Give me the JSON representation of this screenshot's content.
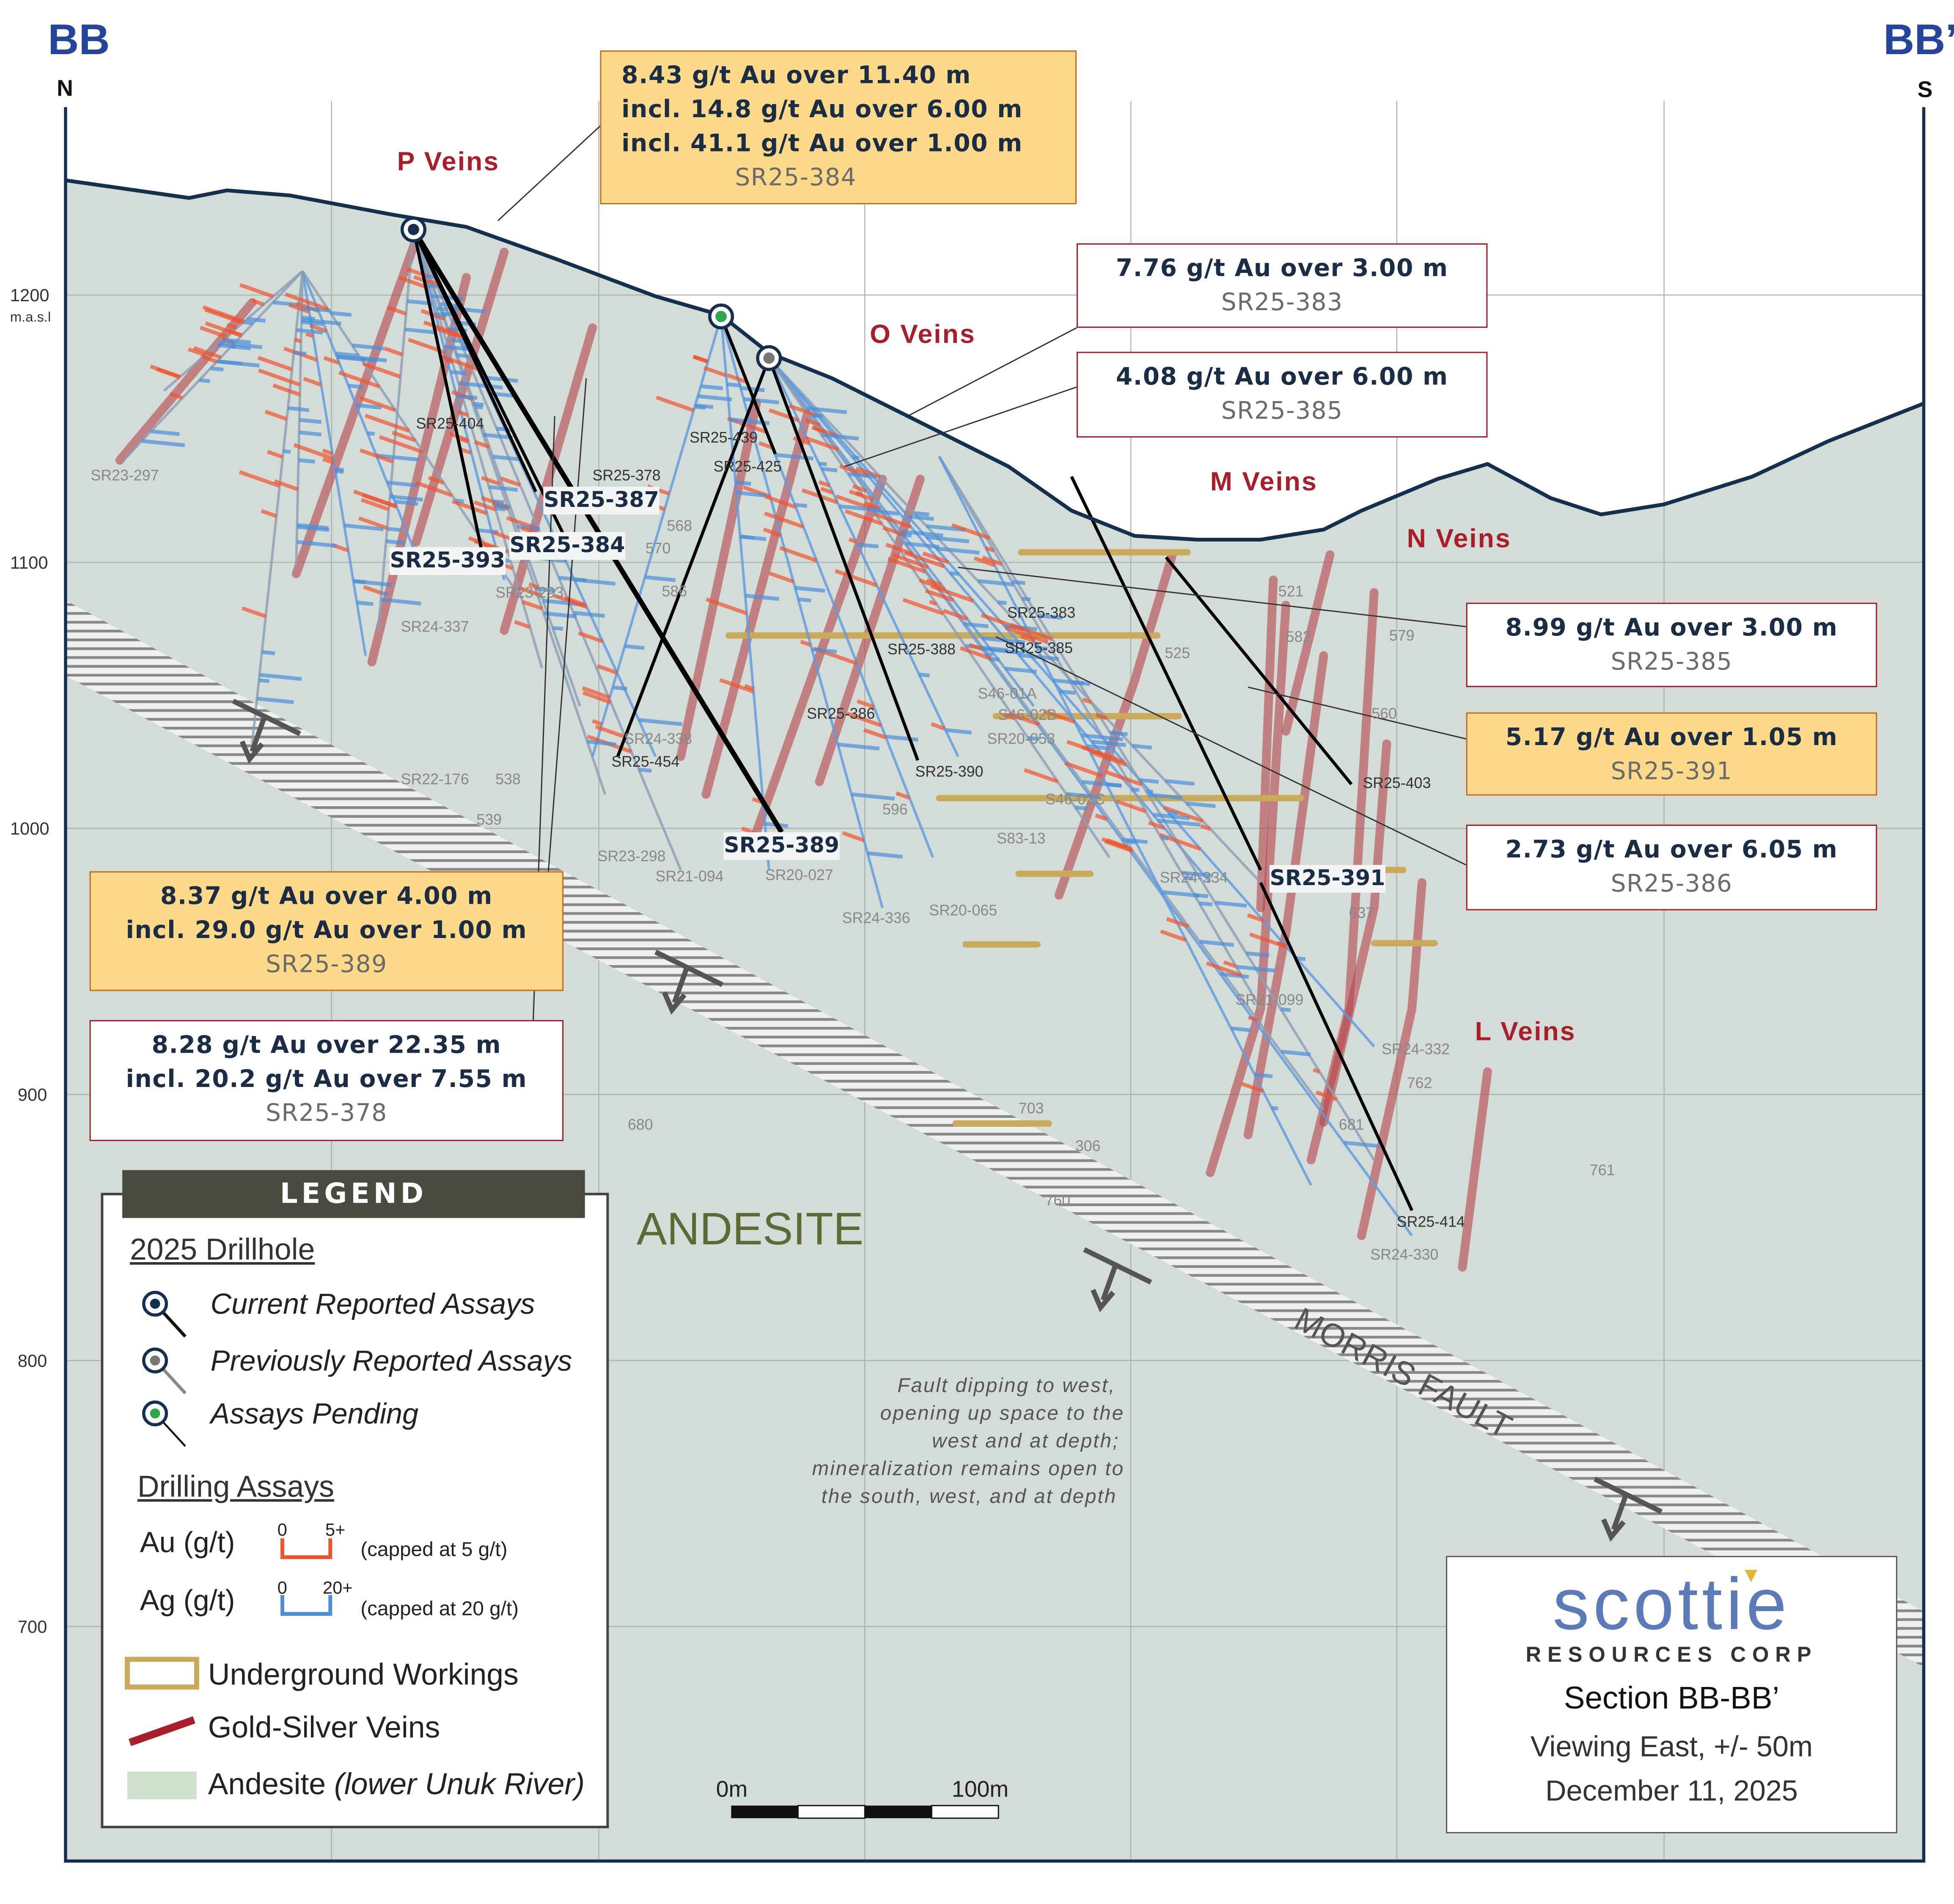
{
  "section": {
    "left_label": "BB",
    "right_label": "BB’",
    "north": "N",
    "south": "S"
  },
  "elevation_axis": {
    "unit": "m.a.s.l",
    "ticks": [
      "1200",
      "1100",
      "1000",
      "900",
      "800",
      "700"
    ]
  },
  "vein_labels": [
    "P Veins",
    "O Veins",
    "M Veins",
    "N Veins",
    "L Veins"
  ],
  "rock_label": "ANDESITE",
  "fault_label": "MORRIS FAULT",
  "fault_note": [
    "Fault dipping to west,",
    "opening up space to the",
    "west and at depth;",
    "mineralization remains open to",
    "the south, west, and at depth"
  ],
  "callouts": [
    {
      "lines": [
        "8.43 g/t Au over 11.40 m",
        "incl. 14.8 g/t Au over 6.00 m",
        "incl. 41.1 g/t Au over 1.00 m"
      ],
      "hole": "SR25-384"
    },
    {
      "lines": [
        "7.76 g/t Au over 3.00 m"
      ],
      "hole": "SR25-383"
    },
    {
      "lines": [
        "4.08 g/t Au over 6.00 m"
      ],
      "hole": "SR25-385"
    },
    {
      "lines": [
        "8.99 g/t Au over 3.00 m"
      ],
      "hole": "SR25-385"
    },
    {
      "lines": [
        "5.17 g/t Au over 1.05 m"
      ],
      "hole": "SR25-391"
    },
    {
      "lines": [
        "2.73 g/t Au over 6.05 m"
      ],
      "hole": "SR25-386"
    },
    {
      "lines": [
        "8.37 g/t Au over 4.00 m",
        "incl. 29.0 g/t Au over 1.00 m"
      ],
      "hole": "SR25-389"
    },
    {
      "lines": [
        "8.28 g/t Au over 22.35 m",
        "incl. 20.2 g/t Au over 7.55 m"
      ],
      "hole": "SR25-378"
    }
  ],
  "hole_labels_major": [
    "SR25-387",
    "SR25-384",
    "SR25-393",
    "SR25-389",
    "SR25-391"
  ],
  "hole_labels_current": [
    "SR25-404",
    "SR25-439",
    "SR25-425",
    "SR25-378",
    "SR25-454",
    "SR25-388",
    "SR25-383",
    "SR25-385",
    "SR25-386",
    "SR25-390",
    "SR25-403",
    "SR25-414"
  ],
  "hole_labels_historic": [
    "SR23-297",
    "SR23-293",
    "SR24-337",
    "SR24-338",
    "SR22-176",
    "538",
    "539",
    "SR23-298",
    "SR21-094",
    "SR20-027",
    "568",
    "570",
    "586",
    "596",
    "S46-01A",
    "S46-02B",
    "SR20-053",
    "S46-02C",
    "S83-13",
    "SR24-334",
    "SR24-336",
    "SR20-065",
    "SR21-099",
    "SR24-332",
    "762",
    "703",
    "306",
    "681",
    "760",
    "680",
    "761",
    "SR24-330",
    "521",
    "582",
    "579",
    "525",
    "560",
    "637"
  ],
  "legend": {
    "title": "LEGEND",
    "drillhole_heading": "2025 Drillhole",
    "current": "Current Reported Assays",
    "previous": "Previously Reported Assays",
    "pending": "Assays Pending",
    "assays_heading": "Drilling Assays",
    "au_label": "Au (g/t)",
    "au_min": "0",
    "au_max": "5+",
    "au_note": "(capped at 5 g/t)",
    "ag_label": "Ag (g/t)",
    "ag_min": "0",
    "ag_max": "20+",
    "ag_note": "(capped at 20 g/t)",
    "workings": "Underground Workings",
    "veins": "Gold-Silver Veins",
    "andesite": "Andesite",
    "andesite_note": "(lower Unuk River)"
  },
  "scale_bar": {
    "start": "0m",
    "end": "100m"
  },
  "logo": {
    "name": "scottie",
    "sub": "RESOURCES CORP"
  },
  "info": {
    "section": "Section BB-BB’",
    "view": "Viewing East, +/- 50m",
    "date": "December 11, 2025"
  },
  "colors": {
    "au": "#f0522e",
    "ag": "#4a8fd8",
    "vein": "#b5434a",
    "workings": "#c9a95a",
    "ground": "#d3dcd7",
    "title": "#24459a",
    "callout_highlight": "#fdd98a"
  }
}
